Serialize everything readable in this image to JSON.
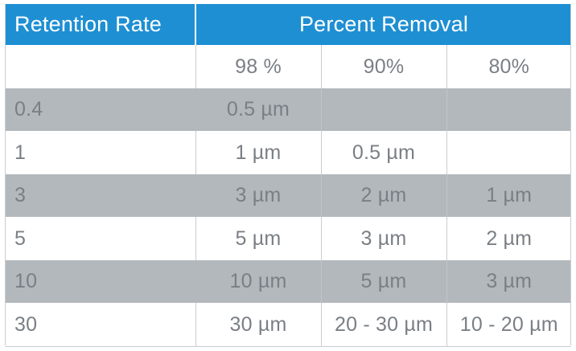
{
  "header": {
    "retention_label": "Retention Rate",
    "percent_label": "Percent Removal"
  },
  "subheader": {
    "cols": [
      "98 %",
      "90%",
      "80%"
    ]
  },
  "rows": [
    {
      "rate": "0.4",
      "p98": "0.5 µm",
      "p90": "",
      "p80": ""
    },
    {
      "rate": "1",
      "p98": "1 µm",
      "p90": "0.5 µm",
      "p80": ""
    },
    {
      "rate": "3",
      "p98": "3 µm",
      "p90": "2 µm",
      "p80": "1 µm"
    },
    {
      "rate": "5",
      "p98": "5 µm",
      "p90": "3 µm",
      "p80": "2 µm"
    },
    {
      "rate": "10",
      "p98": "10 µm",
      "p90": "5 µm",
      "p80": "3 µm"
    },
    {
      "rate": "30",
      "p98": "30 µm",
      "p90": "20 - 30 µm",
      "p80": "10 - 20 µm"
    }
  ],
  "colors": {
    "header_bg": "#1e8fd3",
    "shade_bg": "#b3b8bd",
    "text": "#7a7f85"
  }
}
